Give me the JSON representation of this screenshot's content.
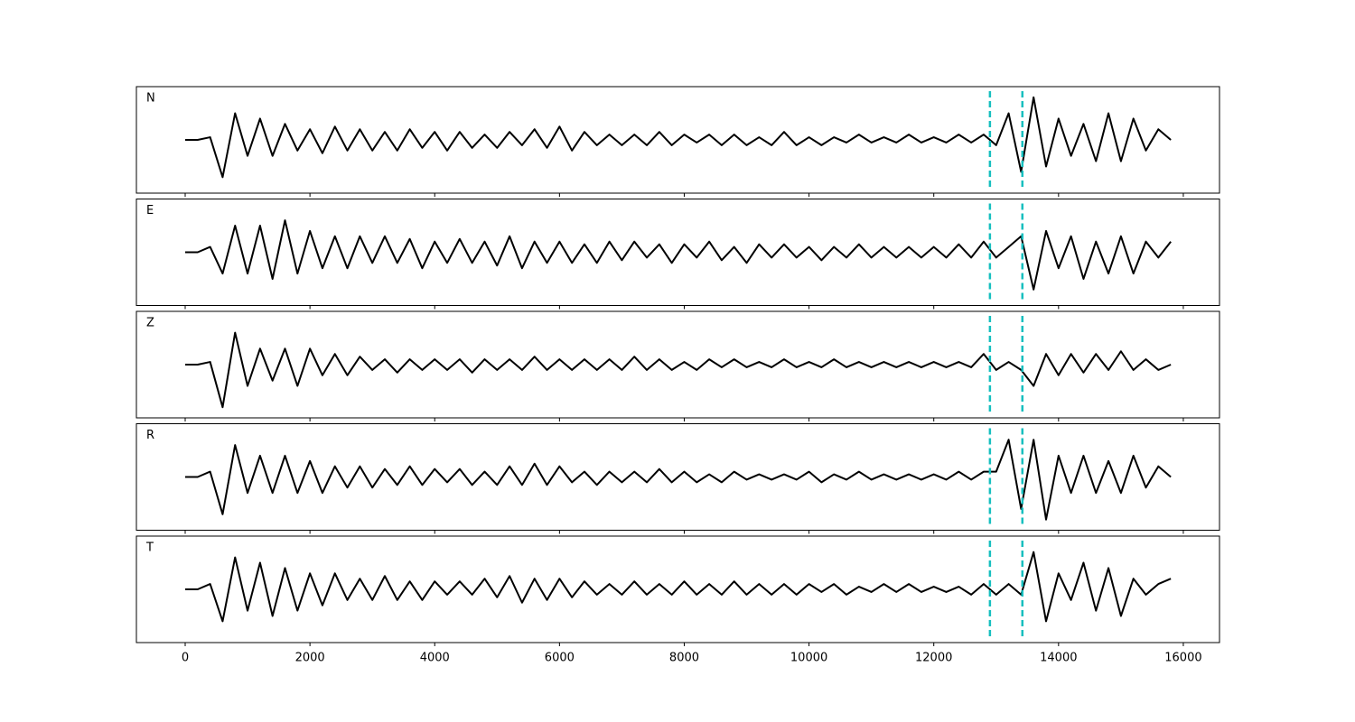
{
  "chart_data": {
    "type": "line",
    "x": [
      0,
      200,
      400,
      600,
      800,
      1000,
      1200,
      1400,
      1600,
      1800,
      2000,
      2200,
      2400,
      2600,
      2800,
      3000,
      3200,
      3400,
      3600,
      3800,
      4000,
      4200,
      4400,
      4600,
      4800,
      5000,
      5200,
      5400,
      5600,
      5800,
      6000,
      6200,
      6400,
      6600,
      6800,
      7000,
      7200,
      7400,
      7600,
      7800,
      8000,
      8200,
      8400,
      8600,
      8800,
      9000,
      9200,
      9400,
      9600,
      9800,
      10000,
      10200,
      10400,
      10600,
      10800,
      11000,
      11200,
      11400,
      11600,
      11800,
      12000,
      12200,
      12400,
      12600,
      12800,
      13000,
      13200,
      13400,
      13600,
      13800,
      14000,
      14200,
      14400,
      14600,
      14800,
      15000,
      15200,
      15400,
      15600,
      15800
    ],
    "xlim": [
      -782,
      16580
    ],
    "xticks": [
      0,
      2000,
      4000,
      6000,
      8000,
      10000,
      12000,
      14000,
      16000
    ],
    "ylim": [
      -1,
      1
    ],
    "line_color": "#000000",
    "vlines": [
      12900,
      13420
    ],
    "vline_color": "#17bfbf",
    "series": [
      {
        "name": "N",
        "values": [
          0,
          0,
          0.05,
          -0.7,
          0.5,
          -0.3,
          0.4,
          -0.3,
          0.3,
          -0.2,
          0.2,
          -0.25,
          0.25,
          -0.2,
          0.2,
          -0.2,
          0.15,
          -0.2,
          0.2,
          -0.15,
          0.15,
          -0.2,
          0.15,
          -0.15,
          0.1,
          -0.15,
          0.15,
          -0.1,
          0.2,
          -0.15,
          0.25,
          -0.2,
          0.15,
          -0.1,
          0.1,
          -0.1,
          0.1,
          -0.1,
          0.15,
          -0.1,
          0.1,
          -0.05,
          0.1,
          -0.1,
          0.1,
          -0.1,
          0.05,
          -0.1,
          0.15,
          -0.1,
          0.05,
          -0.1,
          0.05,
          -0.05,
          0.1,
          -0.05,
          0.05,
          -0.05,
          0.1,
          -0.05,
          0.05,
          -0.05,
          0.1,
          -0.05,
          0.1,
          -0.1,
          0.5,
          -0.6,
          0.8,
          -0.5,
          0.4,
          -0.3,
          0.3,
          -0.4,
          0.5,
          -0.4,
          0.4,
          -0.2,
          0.2,
          0
        ]
      },
      {
        "name": "E",
        "values": [
          0,
          0,
          0.1,
          -0.4,
          0.5,
          -0.4,
          0.5,
          -0.5,
          0.6,
          -0.4,
          0.4,
          -0.3,
          0.3,
          -0.3,
          0.3,
          -0.2,
          0.3,
          -0.2,
          0.25,
          -0.3,
          0.2,
          -0.2,
          0.25,
          -0.2,
          0.2,
          -0.25,
          0.3,
          -0.3,
          0.2,
          -0.2,
          0.2,
          -0.2,
          0.15,
          -0.2,
          0.2,
          -0.15,
          0.2,
          -0.1,
          0.15,
          -0.2,
          0.15,
          -0.1,
          0.2,
          -0.15,
          0.1,
          -0.2,
          0.15,
          -0.1,
          0.15,
          -0.1,
          0.1,
          -0.15,
          0.1,
          -0.1,
          0.15,
          -0.1,
          0.1,
          -0.1,
          0.1,
          -0.1,
          0.1,
          -0.1,
          0.15,
          -0.1,
          0.2,
          -0.1,
          0.1,
          0.3,
          -0.7,
          0.4,
          -0.3,
          0.3,
          -0.5,
          0.2,
          -0.4,
          0.3,
          -0.4,
          0.2,
          -0.1,
          0.2
        ]
      },
      {
        "name": "Z",
        "values": [
          0,
          0,
          0.05,
          -0.8,
          0.6,
          -0.4,
          0.3,
          -0.3,
          0.3,
          -0.4,
          0.3,
          -0.2,
          0.2,
          -0.2,
          0.15,
          -0.1,
          0.1,
          -0.15,
          0.1,
          -0.1,
          0.1,
          -0.1,
          0.1,
          -0.15,
          0.1,
          -0.1,
          0.1,
          -0.1,
          0.15,
          -0.1,
          0.1,
          -0.1,
          0.1,
          -0.1,
          0.1,
          -0.1,
          0.15,
          -0.1,
          0.1,
          -0.1,
          0.05,
          -0.1,
          0.1,
          -0.05,
          0.1,
          -0.05,
          0.05,
          -0.05,
          0.1,
          -0.05,
          0.05,
          -0.05,
          0.1,
          -0.05,
          0.05,
          -0.05,
          0.05,
          -0.05,
          0.05,
          -0.05,
          0.05,
          -0.05,
          0.05,
          -0.05,
          0.2,
          -0.1,
          0.05,
          -0.1,
          -0.4,
          0.2,
          -0.2,
          0.2,
          -0.15,
          0.2,
          -0.1,
          0.25,
          -0.1,
          0.1,
          -0.1,
          0
        ]
      },
      {
        "name": "R",
        "values": [
          0,
          0,
          0.1,
          -0.7,
          0.6,
          -0.3,
          0.4,
          -0.3,
          0.4,
          -0.3,
          0.3,
          -0.3,
          0.2,
          -0.2,
          0.2,
          -0.2,
          0.15,
          -0.15,
          0.2,
          -0.15,
          0.15,
          -0.1,
          0.15,
          -0.15,
          0.1,
          -0.15,
          0.2,
          -0.15,
          0.25,
          -0.15,
          0.2,
          -0.1,
          0.1,
          -0.15,
          0.1,
          -0.1,
          0.1,
          -0.1,
          0.15,
          -0.1,
          0.1,
          -0.1,
          0.05,
          -0.1,
          0.1,
          -0.05,
          0.05,
          -0.05,
          0.05,
          -0.05,
          0.1,
          -0.1,
          0.05,
          -0.05,
          0.1,
          -0.05,
          0.05,
          -0.05,
          0.05,
          -0.05,
          0.05,
          -0.05,
          0.1,
          -0.05,
          0.1,
          0.1,
          0.7,
          -0.6,
          0.7,
          -0.8,
          0.4,
          -0.3,
          0.4,
          -0.3,
          0.3,
          -0.3,
          0.4,
          -0.2,
          0.2,
          0
        ]
      },
      {
        "name": "T",
        "values": [
          0,
          0,
          0.1,
          -0.6,
          0.6,
          -0.4,
          0.5,
          -0.5,
          0.4,
          -0.4,
          0.3,
          -0.3,
          0.3,
          -0.2,
          0.2,
          -0.2,
          0.25,
          -0.2,
          0.15,
          -0.2,
          0.15,
          -0.1,
          0.15,
          -0.1,
          0.2,
          -0.15,
          0.25,
          -0.25,
          0.2,
          -0.2,
          0.2,
          -0.15,
          0.15,
          -0.1,
          0.1,
          -0.1,
          0.15,
          -0.1,
          0.1,
          -0.1,
          0.15,
          -0.1,
          0.1,
          -0.1,
          0.15,
          -0.1,
          0.1,
          -0.1,
          0.1,
          -0.1,
          0.1,
          -0.05,
          0.1,
          -0.1,
          0.05,
          -0.05,
          0.1,
          -0.05,
          0.1,
          -0.05,
          0.05,
          -0.05,
          0.05,
          -0.1,
          0.1,
          -0.1,
          0.1,
          -0.1,
          0.7,
          -0.6,
          0.3,
          -0.2,
          0.5,
          -0.4,
          0.4,
          -0.5,
          0.2,
          -0.1,
          0.1,
          0.2
        ]
      }
    ]
  }
}
